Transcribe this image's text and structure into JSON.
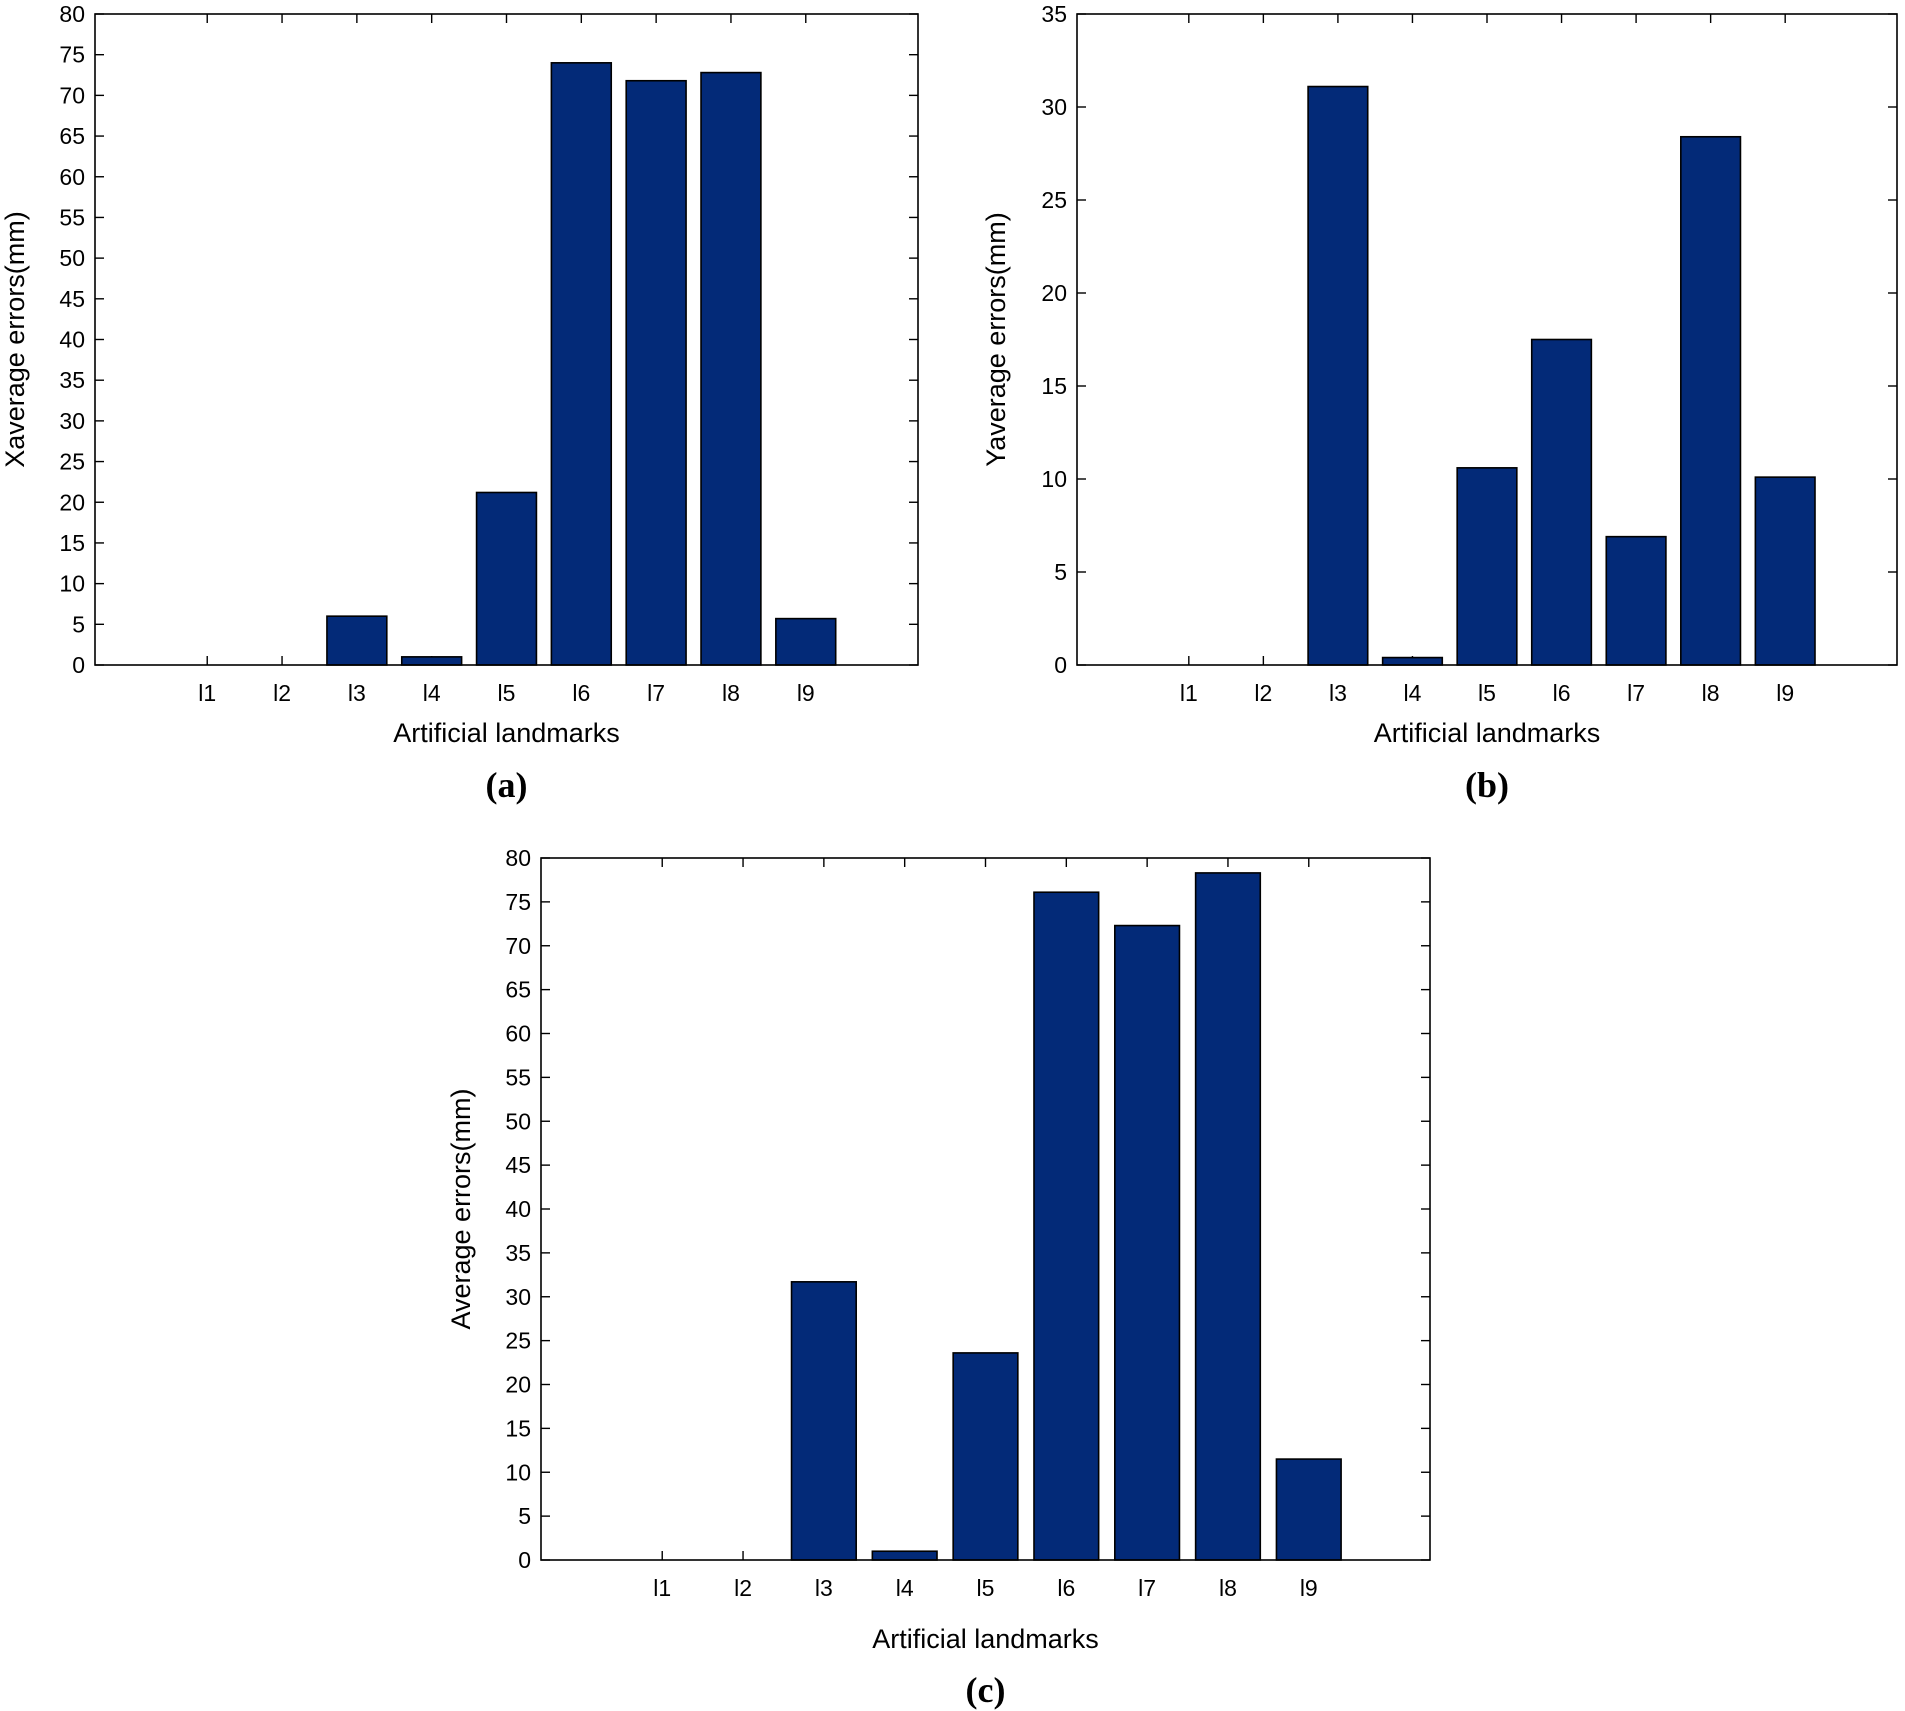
{
  "bar_color": "#032a78",
  "chart_data": [
    {
      "type": "bar",
      "panel": "(a)",
      "title": "",
      "xlabel": "Artificial landmarks",
      "ylabel": "Xaverage errors(mm)",
      "categories": [
        "l1",
        "l2",
        "l3",
        "l4",
        "l5",
        "l6",
        "l7",
        "l8",
        "l9"
      ],
      "values": [
        0,
        0,
        6,
        1,
        21.2,
        74,
        71.8,
        72.8,
        5.7
      ],
      "ylim": [
        0,
        80
      ],
      "yticks": [
        0,
        5,
        10,
        15,
        20,
        25,
        30,
        35,
        40,
        45,
        50,
        55,
        60,
        65,
        70,
        75,
        80
      ]
    },
    {
      "type": "bar",
      "panel": "(b)",
      "title": "",
      "xlabel": "Artificial landmarks",
      "ylabel": "Yaverage errors(mm)",
      "categories": [
        "l1",
        "l2",
        "l3",
        "l4",
        "l5",
        "l6",
        "l7",
        "l8",
        "l9"
      ],
      "values": [
        0,
        0,
        31.1,
        0.4,
        10.6,
        17.5,
        6.9,
        28.4,
        10.1
      ],
      "ylim": [
        0,
        35
      ],
      "yticks": [
        0,
        5,
        10,
        15,
        20,
        25,
        30,
        35
      ]
    },
    {
      "type": "bar",
      "panel": "(c)",
      "title": "",
      "xlabel": "Artificial landmarks",
      "ylabel": "Average errors(mm)",
      "categories": [
        "l1",
        "l2",
        "l3",
        "l4",
        "l5",
        "l6",
        "l7",
        "l8",
        "l9"
      ],
      "values": [
        0,
        0,
        31.7,
        1,
        23.6,
        76.1,
        72.3,
        78.3,
        11.5
      ],
      "ylim": [
        0,
        80
      ],
      "yticks": [
        0,
        5,
        10,
        15,
        20,
        25,
        30,
        35,
        40,
        45,
        50,
        55,
        60,
        65,
        70,
        75,
        80
      ]
    }
  ]
}
